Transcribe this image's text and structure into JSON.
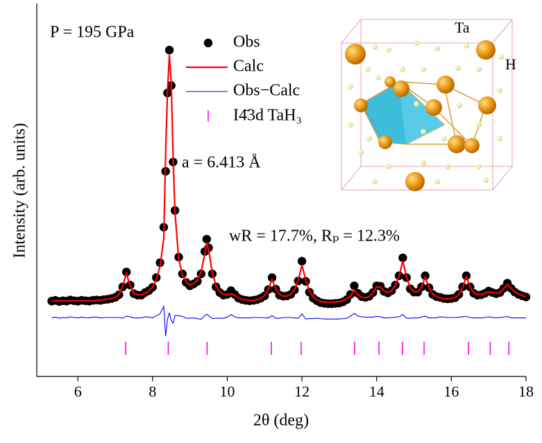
{
  "chart_data": {
    "type": "line",
    "xlabel": "2θ (deg)",
    "ylabel": "Intensity (arb. units)",
    "xlim": [
      4.9,
      18
    ],
    "xticks": [
      6,
      8,
      10,
      12,
      14,
      16,
      18
    ],
    "ylim": [
      0,
      100
    ],
    "annotations": [
      "P = 195 GPa",
      "a = 6.413 Å",
      "wR = 17.7%,  Rₚ = 12.3%",
      "Ta",
      "H"
    ],
    "x": [
      5.3,
      5.4,
      5.5,
      5.6,
      5.7,
      5.8,
      5.9,
      6.0,
      6.1,
      6.2,
      6.3,
      6.4,
      6.5,
      6.6,
      6.7,
      6.8,
      6.9,
      7.0,
      7.1,
      7.2,
      7.3,
      7.4,
      7.5,
      7.6,
      7.7,
      7.8,
      7.9,
      8.0,
      8.1,
      8.2,
      8.3,
      8.35,
      8.4,
      8.45,
      8.5,
      8.55,
      8.6,
      8.7,
      8.8,
      8.9,
      9.0,
      9.1,
      9.2,
      9.3,
      9.4,
      9.45,
      9.5,
      9.6,
      9.7,
      9.8,
      9.9,
      10.0,
      10.1,
      10.2,
      10.3,
      10.4,
      10.5,
      10.6,
      10.7,
      10.8,
      10.9,
      11.0,
      11.1,
      11.2,
      11.3,
      11.4,
      11.5,
      11.6,
      11.7,
      11.8,
      11.9,
      12.0,
      12.1,
      12.2,
      12.3,
      12.4,
      12.5,
      12.6,
      12.7,
      12.8,
      12.9,
      13.0,
      13.1,
      13.2,
      13.3,
      13.4,
      13.5,
      13.6,
      13.7,
      13.8,
      13.9,
      14.0,
      14.1,
      14.2,
      14.3,
      14.4,
      14.5,
      14.6,
      14.7,
      14.8,
      14.9,
      15.0,
      15.1,
      15.2,
      15.3,
      15.4,
      15.5,
      15.6,
      15.7,
      15.8,
      15.9,
      16.0,
      16.1,
      16.2,
      16.3,
      16.4,
      16.5,
      16.6,
      16.7,
      16.8,
      16.9,
      17.0,
      17.1,
      17.2,
      17.3,
      17.4,
      17.5,
      17.6,
      17.7,
      17.8,
      17.9,
      18.0
    ],
    "series": [
      {
        "name": "Obs",
        "color": "#000000",
        "style": "markers",
        "values": [
          20.2,
          20.4,
          20.1,
          20.3,
          20.2,
          20.5,
          20.3,
          20.2,
          20.4,
          20.3,
          20.2,
          20.4,
          20.5,
          20.4,
          20.6,
          20.7,
          20.9,
          21.2,
          21.9,
          24.0,
          28.0,
          24.5,
          22.2,
          21.8,
          21.8,
          22.5,
          23.0,
          23.9,
          26.5,
          30.5,
          40.0,
          55.0,
          76.0,
          87.5,
          78.0,
          57.5,
          44.5,
          32.0,
          27.5,
          25.2,
          24.3,
          24.8,
          25.5,
          27.5,
          33.5,
          36.8,
          34.5,
          27.5,
          24.0,
          22.5,
          21.8,
          22.0,
          23.0,
          22.0,
          21.0,
          20.6,
          20.4,
          20.3,
          20.4,
          20.6,
          21.0,
          21.6,
          23.3,
          26.5,
          23.4,
          21.8,
          21.5,
          21.6,
          22.0,
          23.2,
          25.6,
          30.9,
          25.5,
          22.6,
          21.0,
          20.3,
          19.8,
          19.6,
          19.5,
          19.5,
          19.6,
          19.7,
          20.0,
          20.6,
          22.0,
          24.3,
          22.3,
          21.4,
          21.2,
          21.5,
          22.5,
          24.3,
          24.2,
          22.8,
          22.4,
          23.0,
          24.5,
          27.0,
          31.8,
          26.5,
          23.5,
          22.6,
          22.6,
          24.0,
          27.0,
          23.8,
          22.0,
          21.4,
          21.2,
          20.9,
          20.8,
          20.9,
          21.1,
          22.0,
          24.0,
          27.0,
          24.0,
          22.3,
          21.8,
          21.9,
          22.3,
          22.9,
          22.5,
          22.2,
          22.5,
          23.6,
          25.0,
          23.6,
          22.6,
          22.0,
          21.6,
          21.3
        ]
      },
      {
        "name": "Calc",
        "color": "#ff0000",
        "style": "line",
        "values": [
          20.3,
          20.3,
          20.3,
          20.3,
          20.3,
          20.3,
          20.3,
          20.3,
          20.3,
          20.3,
          20.3,
          20.3,
          20.4,
          20.5,
          20.6,
          20.7,
          20.9,
          21.2,
          21.9,
          24.2,
          27.6,
          24.3,
          22.3,
          21.9,
          21.9,
          22.3,
          22.9,
          24.0,
          26.0,
          29.5,
          37.0,
          60.0,
          76.5,
          86.2,
          78.8,
          59.0,
          44.0,
          31.5,
          27.2,
          25.4,
          24.5,
          24.9,
          25.8,
          28.0,
          33.0,
          35.9,
          34.0,
          27.8,
          24.2,
          22.7,
          22.0,
          21.9,
          22.2,
          21.8,
          21.1,
          20.7,
          20.5,
          20.4,
          20.4,
          20.6,
          21.0,
          21.7,
          23.4,
          26.0,
          23.6,
          22.0,
          21.5,
          21.6,
          22.0,
          23.3,
          25.8,
          29.9,
          25.9,
          22.9,
          21.3,
          20.5,
          20.1,
          20.0,
          19.9,
          19.9,
          20.0,
          20.1,
          20.3,
          20.8,
          21.6,
          23.2,
          21.9,
          21.2,
          21.1,
          21.4,
          22.4,
          24.0,
          24.0,
          22.9,
          22.5,
          23.0,
          24.4,
          26.8,
          31.0,
          26.7,
          23.7,
          22.7,
          22.7,
          23.9,
          26.6,
          23.9,
          22.1,
          21.5,
          21.0,
          20.8,
          20.8,
          20.9,
          21.1,
          21.9,
          23.8,
          26.7,
          24.0,
          22.4,
          21.9,
          22.0,
          22.3,
          22.7,
          22.5,
          22.3,
          22.5,
          23.5,
          24.7,
          23.7,
          22.7,
          22.1,
          21.7,
          21.4
        ]
      },
      {
        "name": "Obs−Calc",
        "color": "#0000ff",
        "style": "thin-line",
        "values": [
          15.7,
          15.9,
          15.6,
          15.8,
          15.7,
          16.0,
          15.8,
          15.7,
          15.9,
          15.8,
          15.7,
          15.9,
          15.9,
          15.7,
          15.8,
          15.8,
          15.8,
          15.8,
          15.8,
          15.6,
          16.2,
          16.0,
          15.7,
          15.7,
          15.7,
          16.0,
          15.9,
          15.7,
          16.3,
          16.8,
          18.8,
          10.8,
          15.3,
          17.1,
          15.0,
          14.3,
          16.3,
          16.3,
          16.1,
          15.6,
          15.6,
          15.7,
          15.5,
          15.3,
          16.3,
          16.7,
          16.3,
          15.5,
          15.6,
          15.6,
          15.6,
          15.9,
          16.6,
          16.0,
          15.7,
          15.7,
          15.7,
          15.7,
          15.8,
          15.8,
          15.8,
          15.7,
          15.7,
          16.3,
          15.6,
          15.6,
          15.8,
          15.8,
          15.8,
          15.7,
          15.6,
          16.8,
          15.4,
          15.5,
          15.5,
          15.6,
          15.5,
          15.4,
          15.4,
          15.4,
          15.4,
          15.4,
          15.5,
          15.6,
          16.2,
          16.9,
          16.2,
          16.0,
          15.9,
          15.9,
          15.9,
          16.1,
          16.0,
          15.7,
          15.7,
          15.8,
          15.9,
          16.0,
          16.6,
          15.6,
          15.6,
          15.7,
          15.7,
          15.9,
          16.2,
          15.7,
          15.7,
          15.7,
          16.0,
          15.9,
          15.8,
          15.8,
          15.8,
          15.9,
          16.0,
          16.1,
          15.8,
          15.7,
          15.7,
          15.7,
          15.8,
          16.0,
          15.8,
          15.7,
          15.8,
          15.9,
          16.1,
          15.7,
          15.7,
          15.7,
          15.7,
          15.7
        ]
      },
      {
        "name": "I4̄3d TaH₃",
        "color": "#ff00ff",
        "style": "ticks",
        "x": [
          7.28,
          8.42,
          9.46,
          11.18,
          11.98,
          13.41,
          14.06,
          14.69,
          15.27,
          16.46,
          17.04,
          17.54
        ]
      }
    ]
  }
}
